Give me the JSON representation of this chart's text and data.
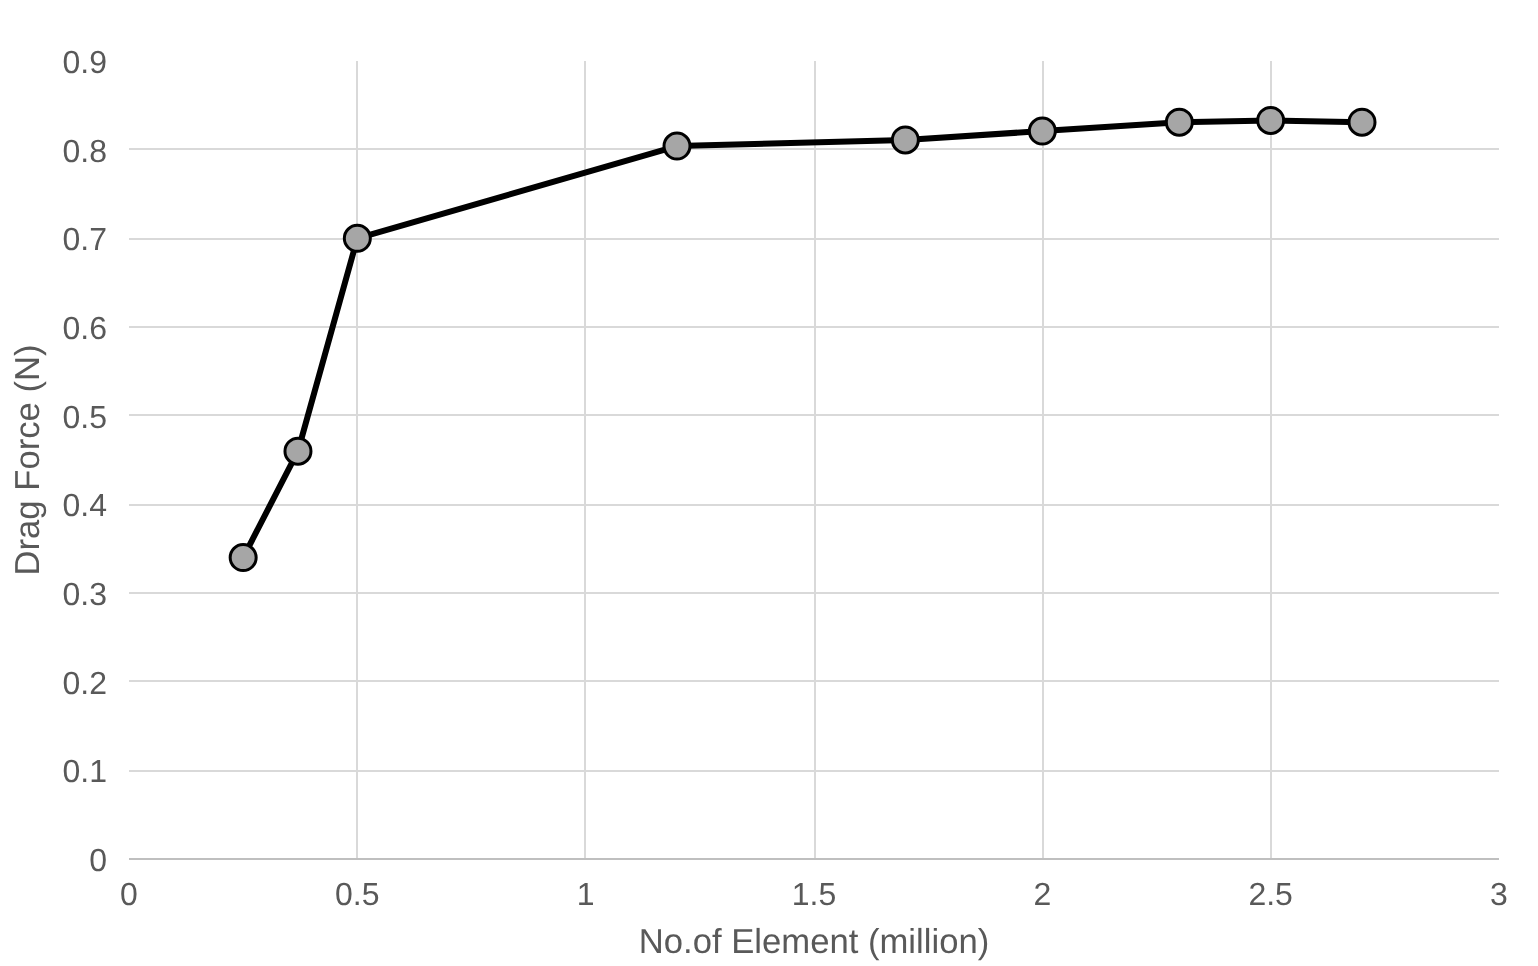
{
  "chart_data": {
    "type": "line",
    "xlabel": "No.of Element (million)",
    "ylabel": "Drag Force (N)",
    "x": [
      0.25,
      0.37,
      0.5,
      1.2,
      1.7,
      2.0,
      2.3,
      2.5,
      2.7
    ],
    "series": [
      {
        "color": "#000000",
        "values": [
          0.34,
          0.46,
          0.7,
          0.804,
          0.811,
          0.821,
          0.831,
          0.833,
          0.831
        ]
      }
    ],
    "marker": "circle",
    "line_style": "solid",
    "grid": true,
    "xlim": [
      0,
      3
    ],
    "xticks": [
      0,
      0.5,
      1,
      1.5,
      2,
      2.5,
      3
    ],
    "ylim": [
      0,
      0.9
    ],
    "yticks": [
      0,
      0.1,
      0.2,
      0.3,
      0.4,
      0.5,
      0.6,
      0.7,
      0.8,
      0.9
    ]
  }
}
